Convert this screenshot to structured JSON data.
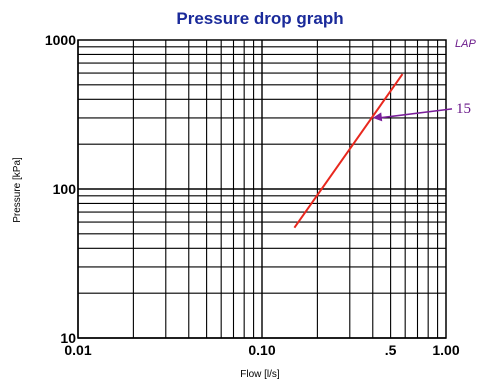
{
  "chart_data": {
    "type": "line",
    "title": "Pressure drop graph",
    "xlabel": "Flow [l/s]",
    "ylabel": "Pressure [kPa]",
    "x_scale": "log",
    "y_scale": "log",
    "xlim": [
      0.01,
      1.0
    ],
    "ylim": [
      10,
      1000
    ],
    "x_ticks": [
      {
        "value": 0.01,
        "label": "0.01"
      },
      {
        "value": 0.1,
        "label": "0.10"
      },
      {
        "value": 0.5,
        "label": ".5"
      },
      {
        "value": 1.0,
        "label": "1.00"
      }
    ],
    "y_ticks": [
      {
        "value": 10,
        "label": "10"
      },
      {
        "value": 100,
        "label": "100"
      },
      {
        "value": 1000,
        "label": "1000"
      }
    ],
    "grid": true,
    "legend_text": "LAP",
    "series": [
      {
        "color": "#e8281e",
        "points": [
          [
            0.15,
            55
          ],
          [
            0.58,
            590
          ]
        ]
      }
    ],
    "annotations": [
      {
        "text": "15",
        "color": "#7a1f9a",
        "from": [
          1.0,
          345
        ],
        "to": [
          0.4,
          300
        ]
      }
    ]
  }
}
